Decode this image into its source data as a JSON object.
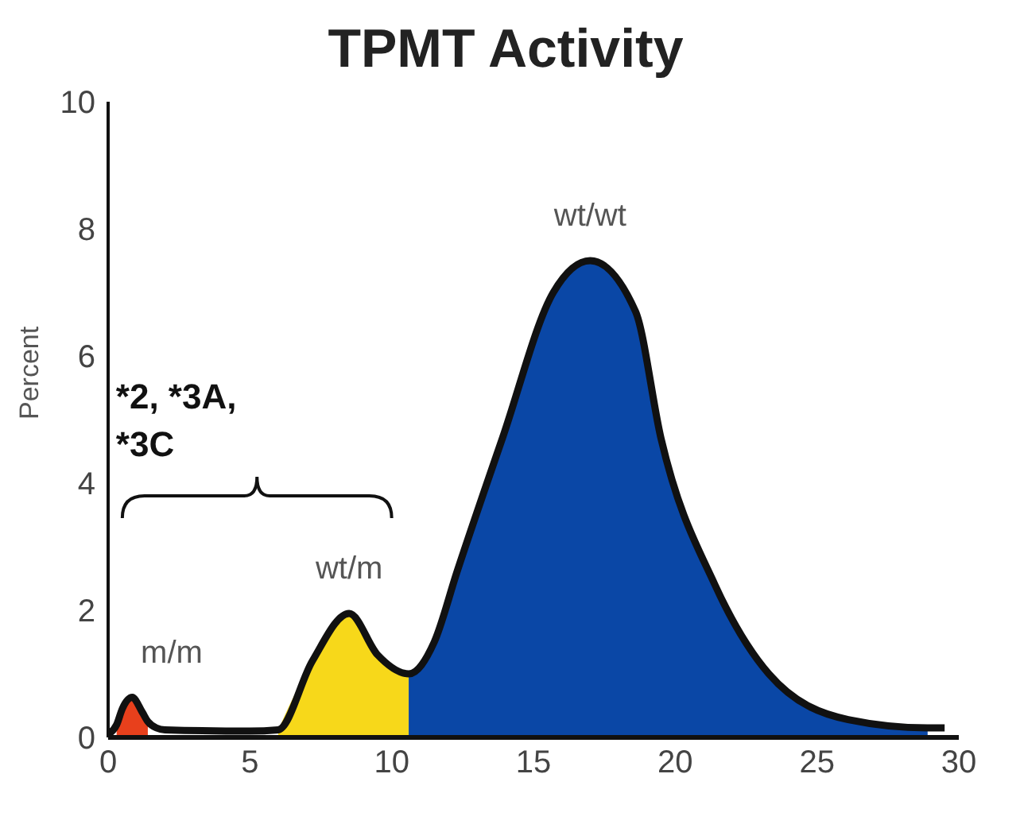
{
  "chart_data": {
    "type": "area",
    "title": "TPMT Activity",
    "ylabel": "Percent",
    "xlim": [
      0,
      30
    ],
    "xticks": [
      0,
      5,
      10,
      15,
      20,
      25,
      30
    ],
    "ylim": [
      0,
      10
    ],
    "yticks": [
      0,
      2,
      4,
      6,
      8,
      10
    ],
    "grid": false,
    "legend": false,
    "annotations": [
      "*2, *3A, *3C"
    ],
    "series": [
      {
        "name": "m/m",
        "color": "#e8401c",
        "x": [
          0.3,
          0.5,
          0.85,
          1.2,
          1.4
        ],
        "values": [
          0.2,
          0.45,
          0.63,
          0.4,
          0.25
        ]
      },
      {
        "name": "wt/m",
        "color": "#f7d81a",
        "x": [
          6,
          7.2,
          8.5,
          9.5,
          10.6
        ],
        "values": [
          0.12,
          1.2,
          1.95,
          1.3,
          1.0
        ]
      },
      {
        "name": "wt/wt",
        "color": "#0a47a6",
        "x": [
          10.6,
          11.5,
          12.3,
          13.9,
          15.7,
          17,
          18.6,
          19.5,
          21.4,
          23.3,
          26.1,
          28.9
        ],
        "values": [
          1.0,
          1.5,
          2.6,
          4.7,
          7.0,
          7.5,
          6.7,
          4.7,
          2.4,
          1.0,
          0.28,
          0.15
        ]
      },
      {
        "type": "line",
        "color": "#111111",
        "x": [
          0,
          0.3,
          0.5,
          0.85,
          1.2,
          1.4,
          1.7,
          2,
          5,
          6,
          7.2,
          8.5,
          9.5,
          10.6,
          11.5,
          12.3,
          13.9,
          15.7,
          17,
          18.6,
          19.5,
          21.4,
          23.3,
          26.1,
          28.9,
          29.5
        ],
        "values": [
          0.05,
          0.2,
          0.45,
          0.63,
          0.4,
          0.25,
          0.15,
          0.12,
          0.1,
          0.12,
          1.2,
          1.95,
          1.3,
          1.0,
          1.5,
          2.6,
          4.7,
          7.0,
          7.5,
          6.7,
          4.7,
          2.4,
          1.0,
          0.28,
          0.15,
          0.15
        ]
      }
    ]
  }
}
